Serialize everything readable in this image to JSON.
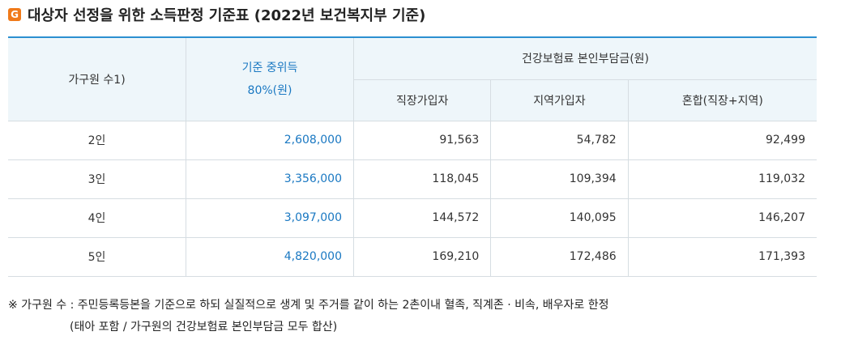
{
  "header": {
    "title": "대상자 선정을 위한 소득판정 기준표 (2022년 보건복지부 기준)"
  },
  "table": {
    "headers": {
      "household": "가구원 수1)",
      "income": [
        "기준 중위득",
        "80%(원)"
      ],
      "insurance": "건강보험료 본인부담금(원)",
      "sub": [
        "직장가입자",
        "지역가입자",
        "혼합(직장+지역)"
      ]
    },
    "rows": [
      [
        "2인",
        "2,608,000",
        "91,563",
        "54,782",
        "92,499"
      ],
      [
        "3인",
        "3,356,000",
        "118,045",
        "109,394",
        "119,032"
      ],
      [
        "4인",
        "3,097,000",
        "144,572",
        "140,095",
        "146,207"
      ],
      [
        "5인",
        "4,820,000",
        "169,210",
        "172,486",
        "171,393"
      ]
    ]
  },
  "notes": [
    "※ 가구원 수 : 주민등록등본을 기준으로 하되 실질적으로 생계 및 주거를 같이 하는 2촌이내 혈족, 직계존 · 비속, 배우자로 한정",
    "(태아 포함 / 가구원의 건강보험료 본인부담금 모두 합산)"
  ]
}
